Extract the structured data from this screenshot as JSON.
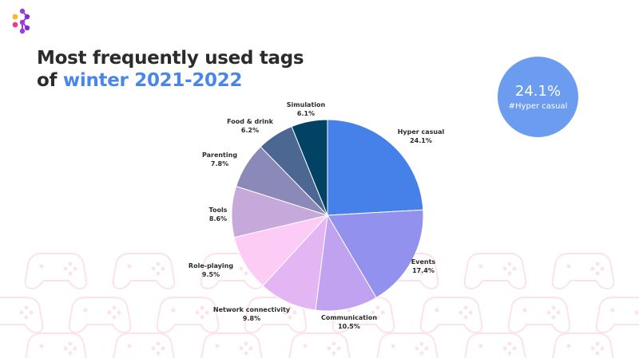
{
  "title": {
    "line1": "Most frequently used tags",
    "line2_prefix": "of ",
    "line2_accent": "winter 2021-2022"
  },
  "badge": {
    "value": "24.1%",
    "tag": "#Hyper casual",
    "color": "#6b9cef"
  },
  "logo_icon": "dots-logo-icon",
  "background_icon": "gamepad-icon",
  "colors": {
    "title": "#2b2b2b",
    "accent": "#4a86e8"
  },
  "chart_data": {
    "type": "pie",
    "start": "12 o'clock, clockwise",
    "slices": [
      {
        "label": "Hyper casual",
        "value": 24.1,
        "value_label": "24.1%",
        "color": "#4681ea"
      },
      {
        "label": "Events",
        "value": 17.4,
        "value_label": "17.4%",
        "color": "#9291ee"
      },
      {
        "label": "Communication",
        "value": 10.5,
        "value_label": "10.5%",
        "color": "#c0a2f1"
      },
      {
        "label": "Network connectivity",
        "value": 9.8,
        "value_label": "9.8%",
        "color": "#e3b5f3"
      },
      {
        "label": "Role-playing",
        "value": 9.5,
        "value_label": "9.5%",
        "color": "#fccbf6"
      },
      {
        "label": "Tools",
        "value": 8.6,
        "value_label": "8.6%",
        "color": "#c6a9da"
      },
      {
        "label": "Parenting",
        "value": 7.8,
        "value_label": "7.8%",
        "color": "#8b89b8"
      },
      {
        "label": "Food & drink",
        "value": 6.2,
        "value_label": "6.2%",
        "color": "#4c6792"
      },
      {
        "label": "Simulation",
        "value": 6.1,
        "value_label": "6.1%",
        "color": "#024365"
      }
    ]
  }
}
